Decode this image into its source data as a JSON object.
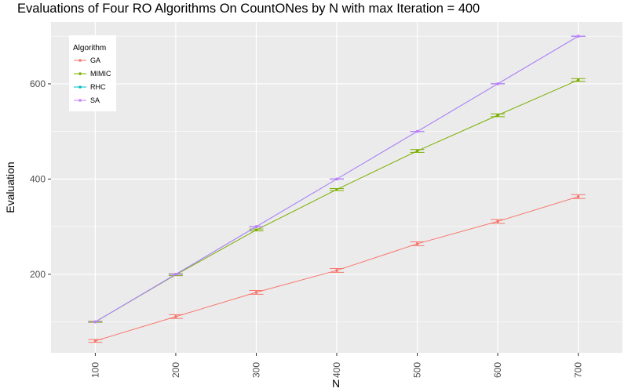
{
  "chart_data": {
    "type": "line",
    "title": "Evaluations of Four RO Algorithms On CountONes by N with max Iteration = 400",
    "xlabel": "N",
    "ylabel": "Evaluation",
    "x": [
      100,
      200,
      300,
      400,
      500,
      600,
      700
    ],
    "xlim": [
      45,
      755
    ],
    "ylim": [
      35,
      730
    ],
    "xticks": [
      "100",
      "200",
      "300",
      "400",
      "500",
      "600",
      "700"
    ],
    "yticks": [
      "200",
      "400",
      "600"
    ],
    "ytick_values": [
      200,
      400,
      600
    ],
    "grid": true,
    "legend": {
      "title": "Algorithm",
      "position": "top-left"
    },
    "series": [
      {
        "name": "GA",
        "color": "#F8766D",
        "values": [
          60,
          111,
          162,
          208,
          264,
          311,
          363
        ],
        "err": [
          3,
          4,
          4,
          4,
          4,
          4,
          4
        ]
      },
      {
        "name": "MIMIC",
        "color": "#7CAE00",
        "values": [
          100,
          199,
          293,
          378,
          459,
          534,
          608
        ],
        "err": [
          1,
          2,
          2,
          2,
          3,
          3,
          3
        ]
      },
      {
        "name": "RHC",
        "color": "#00BFC4",
        "values": [
          100,
          200,
          300,
          400,
          500,
          600,
          700
        ],
        "err": [
          0,
          0,
          0,
          0,
          0,
          0,
          0
        ]
      },
      {
        "name": "SA",
        "color": "#C77CFF",
        "values": [
          100,
          200,
          300,
          400,
          500,
          600,
          700
        ],
        "err": [
          0,
          0,
          0,
          0,
          0,
          0,
          0
        ]
      }
    ]
  }
}
